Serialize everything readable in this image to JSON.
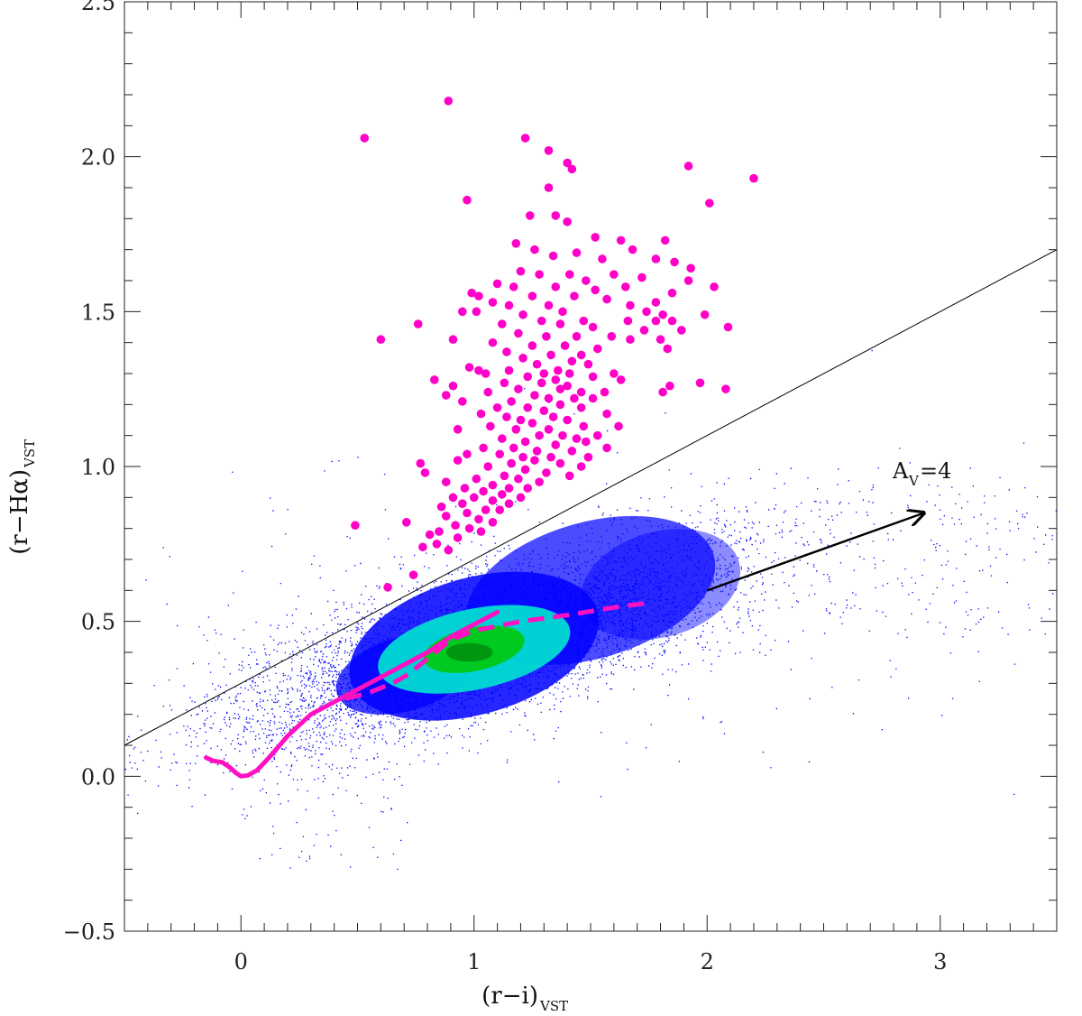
{
  "chart_data": {
    "type": "scatter",
    "title": "",
    "xlabel_main": "(r−i)",
    "xlabel_sub": "VST",
    "ylabel_main": "(r−Hα)",
    "ylabel_sub": "VST",
    "xlim": [
      -0.5,
      3.5
    ],
    "ylim": [
      -0.5,
      2.5
    ],
    "x_ticks": [
      0,
      1,
      2,
      3
    ],
    "x_tick_labels": [
      "0",
      "1",
      "2",
      "3"
    ],
    "y_ticks": [
      -0.5,
      0.0,
      0.5,
      1.0,
      1.5,
      2.0,
      2.5
    ],
    "y_tick_labels": [
      "−0.5",
      "0.0",
      "0.5",
      "1.0",
      "1.5",
      "2.0",
      "2.5"
    ],
    "grid": false,
    "colors": {
      "field_stars": "#0000ff",
      "density_mid": "#00e5d0",
      "density_high": "#00c800",
      "density_peak": "#006400",
      "emitters": "#ff00c8",
      "selection_line": "#000000",
      "tracks": "#ff10c0",
      "reddening_arrow": "#000000"
    },
    "series": [
      {
        "type": "line",
        "points": [
          [
            -0.5,
            0.1
          ],
          [
            3.5,
            1.7
          ]
        ]
      },
      {
        "type": "line",
        "style": "solid",
        "points": [
          [
            -0.15,
            0.06
          ],
          [
            -0.12,
            0.05
          ],
          [
            -0.08,
            0.045
          ],
          [
            -0.05,
            0.03
          ],
          [
            -0.02,
            0.01
          ],
          [
            0.0,
            0.0
          ],
          [
            0.03,
            0.003
          ],
          [
            0.07,
            0.02
          ],
          [
            0.12,
            0.06
          ],
          [
            0.2,
            0.13
          ],
          [
            0.3,
            0.2
          ],
          [
            0.4,
            0.24
          ],
          [
            0.5,
            0.28
          ],
          [
            0.6,
            0.32
          ],
          [
            0.7,
            0.36
          ],
          [
            0.8,
            0.4
          ],
          [
            0.9,
            0.45
          ],
          [
            1.0,
            0.49
          ],
          [
            1.1,
            0.53
          ]
        ]
      },
      {
        "type": "line",
        "style": "dashed",
        "points": [
          [
            0.45,
            0.25
          ],
          [
            0.55,
            0.27
          ],
          [
            0.65,
            0.3
          ],
          [
            0.72,
            0.33
          ],
          [
            0.8,
            0.38
          ],
          [
            0.9,
            0.44
          ],
          [
            1.0,
            0.47
          ],
          [
            1.2,
            0.5
          ],
          [
            1.4,
            0.52
          ],
          [
            1.6,
            0.545
          ],
          [
            1.75,
            0.56
          ]
        ]
      },
      {
        "type": "scatter",
        "points": [
          [
            0.53,
            2.06
          ],
          [
            0.89,
            2.18
          ],
          [
            1.22,
            2.06
          ],
          [
            1.32,
            2.02
          ],
          [
            1.4,
            1.98
          ],
          [
            1.92,
            1.97
          ],
          [
            2.2,
            1.93
          ],
          [
            1.42,
            1.96
          ],
          [
            1.32,
            1.9
          ],
          [
            0.97,
            1.86
          ],
          [
            1.24,
            1.81
          ],
          [
            1.35,
            1.81
          ],
          [
            1.4,
            1.79
          ],
          [
            2.01,
            1.85
          ],
          [
            1.52,
            1.74
          ],
          [
            1.63,
            1.73
          ],
          [
            1.18,
            1.72
          ],
          [
            1.26,
            1.7
          ],
          [
            1.82,
            1.73
          ],
          [
            1.44,
            1.69
          ],
          [
            1.68,
            1.7
          ],
          [
            1.34,
            1.68
          ],
          [
            1.55,
            1.67
          ],
          [
            1.78,
            1.67
          ],
          [
            1.86,
            1.66
          ],
          [
            1.93,
            1.64
          ],
          [
            1.2,
            1.63
          ],
          [
            1.28,
            1.62
          ],
          [
            1.41,
            1.62
          ],
          [
            1.6,
            1.62
          ],
          [
            1.72,
            1.61
          ],
          [
            1.48,
            1.6
          ],
          [
            1.92,
            1.6
          ],
          [
            2.03,
            1.58
          ],
          [
            1.1,
            1.59
          ],
          [
            1.17,
            1.58
          ],
          [
            1.35,
            1.58
          ],
          [
            1.65,
            1.58
          ],
          [
            1.52,
            1.57
          ],
          [
            1.85,
            1.56
          ],
          [
            0.99,
            1.56
          ],
          [
            1.25,
            1.55
          ],
          [
            1.43,
            1.55
          ],
          [
            1.57,
            1.54
          ],
          [
            1.02,
            1.55
          ],
          [
            1.78,
            1.53
          ],
          [
            1.08,
            1.53
          ],
          [
            1.15,
            1.52
          ],
          [
            1.32,
            1.52
          ],
          [
            1.67,
            1.52
          ],
          [
            1.38,
            1.5
          ],
          [
            1.21,
            1.49
          ],
          [
            1.74,
            1.5
          ],
          [
            1.81,
            1.49
          ],
          [
            1.99,
            1.49
          ],
          [
            0.95,
            1.5
          ],
          [
            1.01,
            1.5
          ],
          [
            1.29,
            1.47
          ],
          [
            1.47,
            1.47
          ],
          [
            1.66,
            1.47
          ],
          [
            1.78,
            1.47
          ],
          [
            1.85,
            1.47
          ],
          [
            1.12,
            1.46
          ],
          [
            1.37,
            1.46
          ],
          [
            2.09,
            1.45
          ],
          [
            0.76,
            1.46
          ],
          [
            1.51,
            1.45
          ],
          [
            1.73,
            1.44
          ],
          [
            1.89,
            1.44
          ],
          [
            1.19,
            1.43
          ],
          [
            1.31,
            1.42
          ],
          [
            1.44,
            1.42
          ],
          [
            1.59,
            1.42
          ],
          [
            1.67,
            1.41
          ],
          [
            1.8,
            1.41
          ],
          [
            1.08,
            1.4
          ],
          [
            1.25,
            1.39
          ],
          [
            1.39,
            1.39
          ],
          [
            0.6,
            1.41
          ],
          [
            0.91,
            1.41
          ],
          [
            1.53,
            1.38
          ],
          [
            1.83,
            1.38
          ],
          [
            1.14,
            1.37
          ],
          [
            1.33,
            1.36
          ],
          [
            1.46,
            1.36
          ],
          [
            1.21,
            1.35
          ],
          [
            1.42,
            1.34
          ],
          [
            1.27,
            1.33
          ],
          [
            1.36,
            1.31
          ],
          [
            1.49,
            1.33
          ],
          [
            1.15,
            1.31
          ],
          [
            1.3,
            1.3
          ],
          [
            1.41,
            1.3
          ],
          [
            1.05,
            1.3
          ],
          [
            1.23,
            1.29
          ],
          [
            1.35,
            1.28
          ],
          [
            1.51,
            1.29
          ],
          [
            1.6,
            1.3
          ],
          [
            1.63,
            1.28
          ],
          [
            1.13,
            1.27
          ],
          [
            1.29,
            1.27
          ],
          [
            1.4,
            1.26
          ],
          [
            0.98,
            1.32
          ],
          [
            1.02,
            1.31
          ],
          [
            0.83,
            1.28
          ],
          [
            0.91,
            1.26
          ],
          [
            1.19,
            1.25
          ],
          [
            1.37,
            1.25
          ],
          [
            1.46,
            1.24
          ],
          [
            1.56,
            1.24
          ],
          [
            1.84,
            1.26
          ],
          [
            1.97,
            1.27
          ],
          [
            2.08,
            1.25
          ],
          [
            1.06,
            1.24
          ],
          [
            1.26,
            1.23
          ],
          [
            1.43,
            1.22
          ],
          [
            0.88,
            1.23
          ],
          [
            1.32,
            1.22
          ],
          [
            1.16,
            1.21
          ],
          [
            1.51,
            1.22
          ],
          [
            1.81,
            1.24
          ],
          [
            1.37,
            1.2
          ],
          [
            1.23,
            1.19
          ],
          [
            1.46,
            1.19
          ],
          [
            0.95,
            1.21
          ],
          [
            1.1,
            1.19
          ],
          [
            1.03,
            1.17
          ],
          [
            1.3,
            1.18
          ],
          [
            1.14,
            1.16
          ],
          [
            1.2,
            1.15
          ],
          [
            1.34,
            1.16
          ],
          [
            1.4,
            1.15
          ],
          [
            1.57,
            1.17
          ],
          [
            1.25,
            1.14
          ],
          [
            1.07,
            1.13
          ],
          [
            1.47,
            1.13
          ],
          [
            1.18,
            1.12
          ],
          [
            1.32,
            1.12
          ],
          [
            1.62,
            1.13
          ],
          [
            0.93,
            1.12
          ],
          [
            1.38,
            1.1
          ],
          [
            1.28,
            1.1
          ],
          [
            1.12,
            1.09
          ],
          [
            1.44,
            1.09
          ],
          [
            1.53,
            1.1
          ],
          [
            1.22,
            1.08
          ],
          [
            1.48,
            1.08
          ],
          [
            1.35,
            1.07
          ],
          [
            1.04,
            1.06
          ],
          [
            1.17,
            1.06
          ],
          [
            1.27,
            1.05
          ],
          [
            1.42,
            1.05
          ],
          [
            1.57,
            1.06
          ],
          [
            1.11,
            1.04
          ],
          [
            1.21,
            1.03
          ],
          [
            1.33,
            1.03
          ],
          [
            0.97,
            1.04
          ],
          [
            1.49,
            1.03
          ],
          [
            0.93,
            1.02
          ],
          [
            1.26,
            1.02
          ],
          [
            1.16,
            1.01
          ],
          [
            1.37,
            1.01
          ],
          [
            1.46,
            1.0
          ],
          [
            0.77,
            1.01
          ],
          [
            1.06,
            1.0
          ],
          [
            1.22,
            0.99
          ],
          [
            1.31,
            0.98
          ],
          [
            0.79,
            0.98
          ],
          [
            1.13,
            0.97
          ],
          [
            1.41,
            0.97
          ],
          [
            1.01,
            0.96
          ],
          [
            1.19,
            0.96
          ],
          [
            1.28,
            0.95
          ],
          [
            0.88,
            0.95
          ],
          [
            1.08,
            0.94
          ],
          [
            1.15,
            0.93
          ],
          [
            1.23,
            0.93
          ],
          [
            0.96,
            0.93
          ],
          [
            1.04,
            0.92
          ],
          [
            1.12,
            0.91
          ],
          [
            1.2,
            0.9
          ],
          [
            0.91,
            0.9
          ],
          [
            1.0,
            0.9
          ],
          [
            1.08,
            0.89
          ],
          [
            0.95,
            0.88
          ],
          [
            1.15,
            0.88
          ],
          [
            0.86,
            0.87
          ],
          [
            1.05,
            0.86
          ],
          [
            1.11,
            0.86
          ],
          [
            0.97,
            0.85
          ],
          [
            0.88,
            0.84
          ],
          [
            1.02,
            0.83
          ],
          [
            0.71,
            0.82
          ],
          [
            1.08,
            0.82
          ],
          [
            0.92,
            0.81
          ],
          [
            0.49,
            0.81
          ],
          [
            0.98,
            0.8
          ],
          [
            0.85,
            0.79
          ],
          [
            1.03,
            0.79
          ],
          [
            0.81,
            0.78
          ],
          [
            0.93,
            0.77
          ],
          [
            0.84,
            0.75
          ],
          [
            0.78,
            0.74
          ],
          [
            0.89,
            0.73
          ],
          [
            0.74,
            0.65
          ],
          [
            0.63,
            0.61
          ]
        ]
      }
    ],
    "annotations": [
      {
        "text_main": "A",
        "text_sub": "V",
        "text_tail": "=4",
        "x": 2.78,
        "y": 0.93
      },
      {
        "type": "arrow",
        "from": [
          2.0,
          0.6
        ],
        "to": [
          2.93,
          0.85
        ]
      }
    ]
  }
}
